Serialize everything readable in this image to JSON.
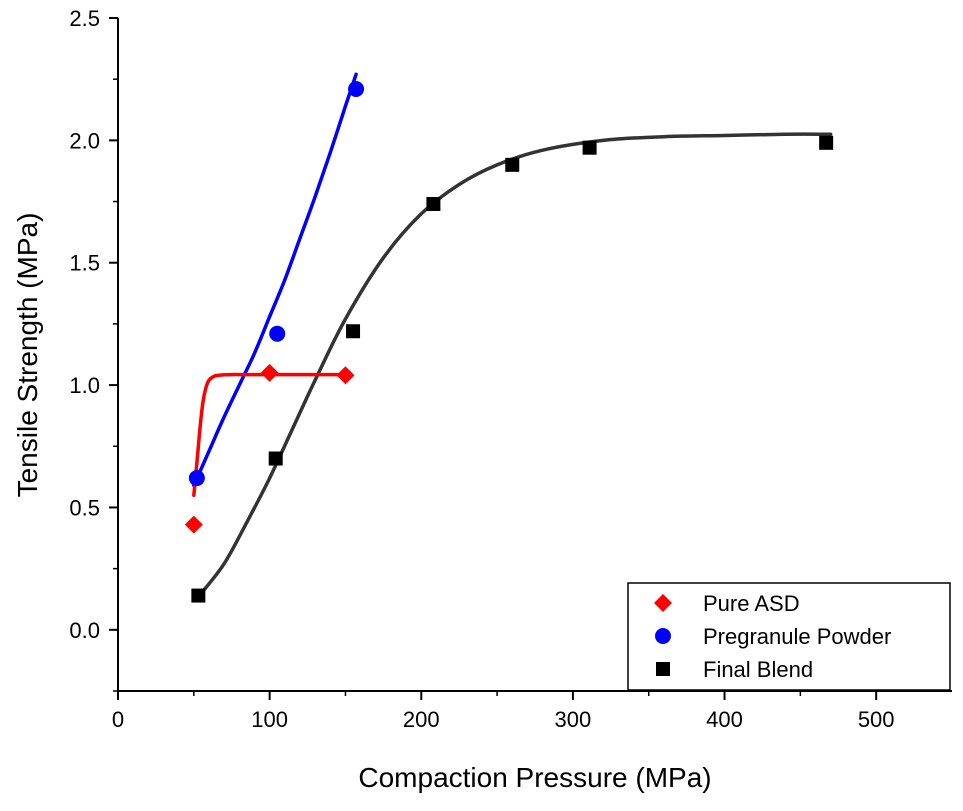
{
  "chart_data": {
    "type": "scatter",
    "xlabel": "Compaction Pressure (MPa)",
    "ylabel": "Tensile Strength (MPa)",
    "xlim": [
      0,
      550
    ],
    "ylim": [
      -0.25,
      2.5
    ],
    "x_ticks": [
      0,
      100,
      200,
      300,
      400,
      500
    ],
    "y_ticks": [
      0.0,
      0.5,
      1.0,
      1.5,
      2.0,
      2.5
    ],
    "x_tick_labels": [
      "0",
      "100",
      "200",
      "300",
      "400",
      "500"
    ],
    "y_tick_labels": [
      "0.0",
      "0.5",
      "1.0",
      "1.5",
      "2.0",
      "2.5"
    ],
    "grid": false,
    "legend_position": "bottom-right",
    "series": [
      {
        "name": "Pure ASD",
        "color": "#ff0000",
        "marker": "diamond",
        "x": [
          50,
          100,
          150
        ],
        "y": [
          0.43,
          1.05,
          1.04
        ],
        "fit": {
          "x": [
            50,
            52,
            54,
            56,
            58,
            60,
            63,
            66,
            70,
            75,
            80,
            90,
            100,
            120,
            150
          ],
          "y": [
            0.55,
            0.68,
            0.82,
            0.93,
            0.99,
            1.02,
            1.035,
            1.04,
            1.042,
            1.043,
            1.043,
            1.043,
            1.043,
            1.043,
            1.043
          ]
        }
      },
      {
        "name": "Pregranule Powder",
        "color": "#0000ff",
        "marker": "circle",
        "x": [
          52,
          105,
          157
        ],
        "y": [
          0.62,
          1.21,
          2.21
        ],
        "fit": {
          "x": [
            50,
            60,
            70,
            80,
            90,
            100,
            110,
            120,
            130,
            140,
            150,
            157
          ],
          "y": [
            0.59,
            0.73,
            0.87,
            1.0,
            1.13,
            1.28,
            1.43,
            1.6,
            1.77,
            1.95,
            2.14,
            2.27
          ]
        }
      },
      {
        "name": "Final Blend",
        "color": "#000000",
        "marker": "square",
        "x": [
          53,
          104,
          155,
          208,
          260,
          311,
          467
        ],
        "y": [
          0.14,
          0.7,
          1.22,
          1.74,
          1.9,
          1.97,
          1.99
        ],
        "fit": {
          "x": [
            55,
            70,
            85,
            100,
            115,
            130,
            150,
            175,
            200,
            225,
            250,
            280,
            320,
            360,
            400,
            440,
            470
          ],
          "y": [
            0.15,
            0.27,
            0.44,
            0.62,
            0.82,
            1.02,
            1.27,
            1.52,
            1.7,
            1.82,
            1.9,
            1.96,
            2.0,
            2.015,
            2.02,
            2.025,
            2.025
          ]
        }
      }
    ]
  }
}
